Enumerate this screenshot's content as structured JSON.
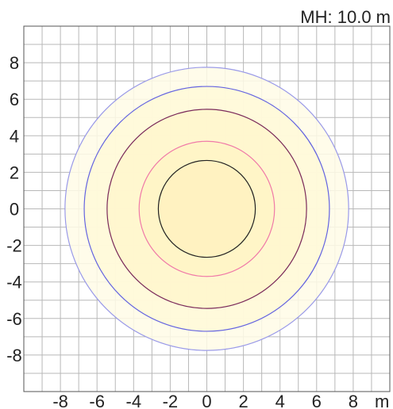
{
  "chart_data": {
    "type": "contour",
    "title": "",
    "annotation": "MH: 10.0 m",
    "xlabel": "m",
    "ylabel": "",
    "xlim": [
      -10,
      10
    ],
    "ylim": [
      -10,
      10
    ],
    "x_ticks": [
      -8,
      -6,
      -4,
      -2,
      0,
      2,
      4,
      6,
      8
    ],
    "y_ticks": [
      8,
      6,
      4,
      2,
      0,
      -2,
      -4,
      -6,
      -8
    ],
    "grid": true,
    "center": [
      0,
      0
    ],
    "contours": [
      {
        "radius": 7.75,
        "stroke": "#9a9ae8",
        "fill": "#fffce6"
      },
      {
        "radius": 6.7,
        "stroke": "#6464e0",
        "fill": "#fff9d8"
      },
      {
        "radius": 5.45,
        "stroke": "#7a2a5a",
        "fill": "#fff6cc"
      },
      {
        "radius": 3.7,
        "stroke": "#f07aa8",
        "fill": "#fff4c6"
      },
      {
        "radius": 2.65,
        "stroke": "#222222",
        "fill": "#fff1bf"
      }
    ]
  }
}
